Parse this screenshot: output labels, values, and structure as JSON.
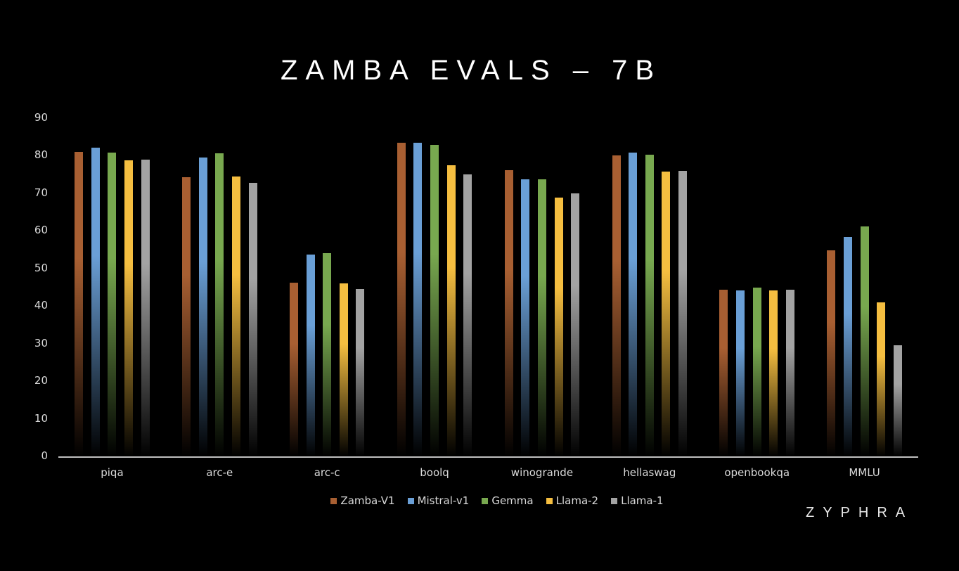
{
  "chart_data": {
    "type": "bar",
    "title": "ZAMBA EVALS – 7B",
    "xlabel": "",
    "ylabel": "",
    "ylim": [
      0,
      90
    ],
    "yticks": [
      0,
      10,
      20,
      30,
      40,
      50,
      60,
      70,
      80,
      90
    ],
    "grid": false,
    "legend_position": "bottom",
    "categories": [
      "piqa",
      "arc-e",
      "arc-c",
      "boolq",
      "winogrande",
      "hellaswag",
      "openbookqa",
      "MMLU"
    ],
    "series": [
      {
        "name": "Zamba-V1",
        "color": "#a85f32",
        "values": [
          81.1,
          74.3,
          46.2,
          83.5,
          76.2,
          80.1,
          44.4,
          54.8
        ]
      },
      {
        "name": "Mistral-v1",
        "color": "#6a9fd6",
        "values": [
          82.1,
          79.5,
          53.7,
          83.5,
          73.7,
          80.8,
          44.1,
          58.4
        ]
      },
      {
        "name": "Gemma",
        "color": "#78a84f",
        "values": [
          80.9,
          80.6,
          54.1,
          82.9,
          73.7,
          80.3,
          45.0,
          61.2
        ]
      },
      {
        "name": "Llama-2",
        "color": "#f5be40",
        "values": [
          78.8,
          74.5,
          46.0,
          77.4,
          68.9,
          75.7,
          44.1,
          41.0
        ]
      },
      {
        "name": "Llama-1",
        "color": "#a3a3a3",
        "values": [
          78.9,
          72.7,
          44.5,
          75.0,
          69.9,
          76.0,
          44.4,
          29.6
        ]
      }
    ]
  },
  "branding": {
    "logo_text": "ZYPHRA"
  }
}
